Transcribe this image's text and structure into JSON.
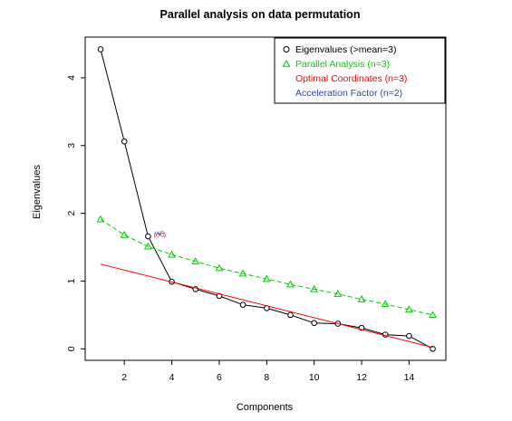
{
  "chart_data": {
    "type": "line",
    "title": "Parallel analysis on data permutation",
    "xlabel": "Components",
    "ylabel": "Eigenvalues",
    "xlim": [
      0.35,
      15.55
    ],
    "ylim": [
      -0.17,
      4.6
    ],
    "x_ticks": [
      2,
      4,
      6,
      8,
      10,
      12,
      14
    ],
    "y_ticks": [
      0,
      1,
      2,
      3,
      4
    ],
    "x_tick_labels": [
      "2",
      "4",
      "6",
      "8",
      "10",
      "12",
      "14"
    ],
    "y_tick_labels": [
      "0",
      "1",
      "2",
      "3",
      "4"
    ],
    "grid": false,
    "legend_position": "top-right",
    "series": [
      {
        "name": "Eigenvalues (>mean=3)",
        "marker": "circle",
        "line": "solid",
        "color": "#000000",
        "x": [
          1,
          2,
          3,
          4,
          5,
          6,
          7,
          8,
          9,
          10,
          11,
          12,
          13,
          14,
          15
        ],
        "values": [
          4.42,
          3.06,
          1.66,
          0.99,
          0.88,
          0.78,
          0.65,
          0.6,
          0.5,
          0.38,
          0.37,
          0.31,
          0.21,
          0.19,
          0.0
        ]
      },
      {
        "name": "Parallel Analysis (n=3)",
        "marker": "triangle",
        "line": "dashed",
        "color": "#00cc00",
        "x": [
          1,
          2,
          3,
          4,
          5,
          6,
          7,
          8,
          9,
          10,
          11,
          12,
          13,
          14,
          15
        ],
        "values": [
          1.91,
          1.68,
          1.51,
          1.39,
          1.29,
          1.19,
          1.11,
          1.03,
          0.95,
          0.88,
          0.81,
          0.73,
          0.66,
          0.58,
          0.5
        ]
      },
      {
        "name": "Optimal Coordinates (n=3)",
        "marker": "none",
        "line": "solid",
        "color": "#ff0000",
        "x": [
          1,
          15
        ],
        "values": [
          1.25,
          0.02
        ]
      },
      {
        "name": "Acceleration Factor (n=2)",
        "marker": "none",
        "line": "none",
        "color": "#3344aa",
        "x": [],
        "values": []
      }
    ],
    "annotations": [
      {
        "text": "(OC)",
        "x": 3.5,
        "y": 1.68,
        "color": "#ff0000"
      },
      {
        "text": "(AF)",
        "x": 3.48,
        "y": 1.7,
        "color": "#3344aa"
      }
    ]
  }
}
